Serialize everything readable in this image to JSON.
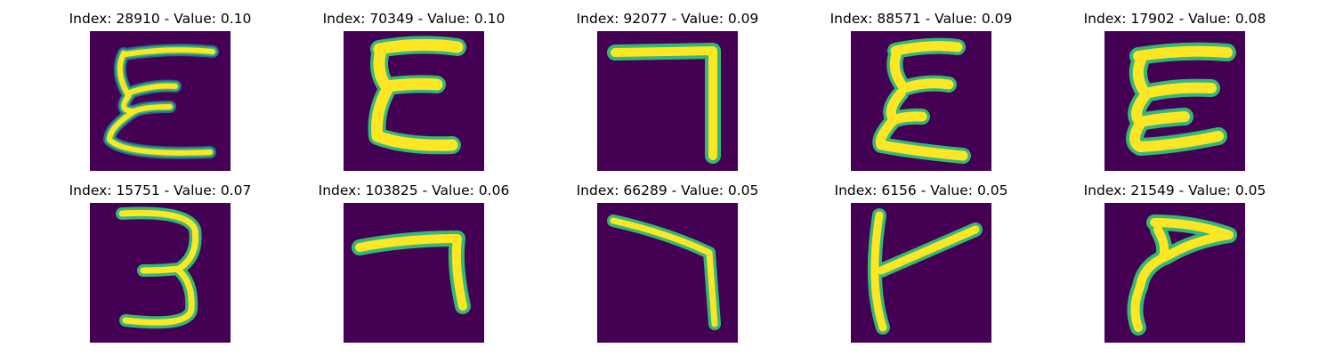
{
  "colors": {
    "background": "#440154",
    "stroke_core": "#fde725",
    "stroke_mid": "#b5de2b",
    "stroke_edge": "#35b779",
    "stroke_halo": "#31688e",
    "stroke_outer": "#3b528b"
  },
  "panels": [
    {
      "title": "Index: 28910 - Value: 0.10",
      "glyph": "xi-thin"
    },
    {
      "title": "Index: 70349 - Value: 0.10",
      "glyph": "xi-bold"
    },
    {
      "title": "Index: 92077 - Value: 0.09",
      "glyph": "seven-corner"
    },
    {
      "title": "Index: 88571 - Value: 0.09",
      "glyph": "xi-bold-2"
    },
    {
      "title": "Index: 17902 - Value: 0.08",
      "glyph": "xi-bold-3"
    },
    {
      "title": "Index: 15751 - Value: 0.07",
      "glyph": "three"
    },
    {
      "title": "Index: 103825 - Value: 0.06",
      "glyph": "seven-corner-2"
    },
    {
      "title": "Index: 66289 - Value: 0.05",
      "glyph": "seven-corner-3"
    },
    {
      "title": "Index: 6156 - Value: 0.05",
      "glyph": "lambda"
    },
    {
      "title": "Index: 21549 - Value: 0.05",
      "glyph": "arrow-curve"
    }
  ]
}
